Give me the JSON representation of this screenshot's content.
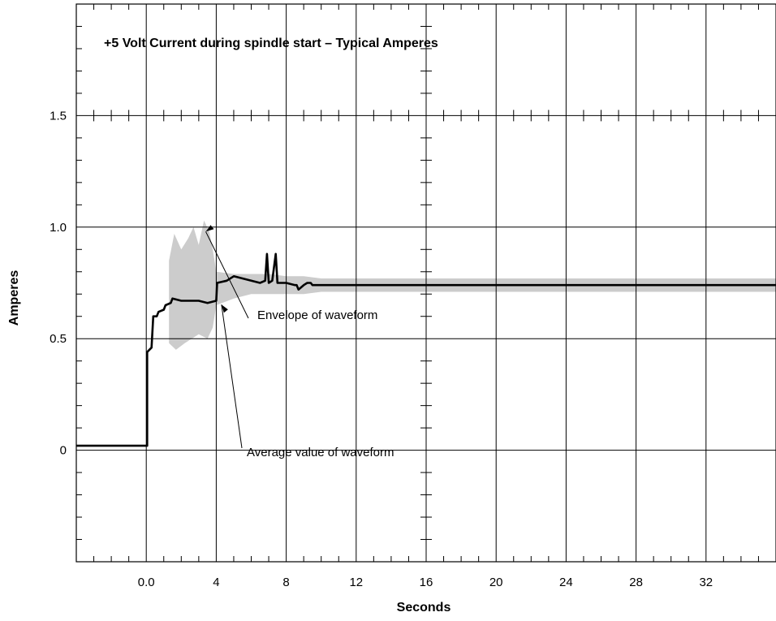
{
  "chart_data": {
    "type": "line",
    "title": "+5 Volt Current during spindle start – Typical Amperes",
    "xlabel": "Seconds",
    "ylabel": "Amperes",
    "xlim": [
      -4,
      36
    ],
    "ylim": [
      -0.5,
      2.0
    ],
    "xtick_labels": [
      {
        "x": 0,
        "label": "0.0"
      },
      {
        "x": 4,
        "label": "4"
      },
      {
        "x": 8,
        "label": "8"
      },
      {
        "x": 12,
        "label": "12"
      },
      {
        "x": 16,
        "label": "16"
      },
      {
        "x": 20,
        "label": "20"
      },
      {
        "x": 24,
        "label": "24"
      },
      {
        "x": 28,
        "label": "28"
      },
      {
        "x": 32,
        "label": "32"
      }
    ],
    "ytick_labels": [
      {
        "y": 0,
        "label": "0"
      },
      {
        "y": 0.5,
        "label": "0.5"
      },
      {
        "y": 1.0,
        "label": "1.0"
      },
      {
        "y": 1.5,
        "label": "1.5"
      }
    ],
    "grid": true,
    "series": [
      {
        "kind": "envelope",
        "upper": [
          [
            1.3,
            0.85
          ],
          [
            1.6,
            0.97
          ],
          [
            2.0,
            0.9
          ],
          [
            2.4,
            0.95
          ],
          [
            2.7,
            1.0
          ],
          [
            3.0,
            0.92
          ],
          [
            3.3,
            1.03
          ],
          [
            3.6,
            0.98
          ],
          [
            3.8,
            0.9
          ],
          [
            4.0,
            0.8
          ],
          [
            5,
            0.79
          ],
          [
            6,
            0.79
          ],
          [
            7,
            0.79
          ],
          [
            8,
            0.78
          ],
          [
            9,
            0.78
          ],
          [
            10,
            0.77
          ],
          [
            12,
            0.77
          ],
          [
            14,
            0.77
          ],
          [
            16,
            0.77
          ],
          [
            20,
            0.77
          ],
          [
            24,
            0.77
          ],
          [
            28,
            0.77
          ],
          [
            32,
            0.77
          ],
          [
            36,
            0.77
          ]
        ],
        "lower": [
          [
            1.3,
            0.48
          ],
          [
            1.7,
            0.45
          ],
          [
            2.2,
            0.48
          ],
          [
            2.6,
            0.5
          ],
          [
            3.0,
            0.52
          ],
          [
            3.5,
            0.5
          ],
          [
            3.8,
            0.55
          ],
          [
            4.0,
            0.65
          ],
          [
            5,
            0.68
          ],
          [
            6,
            0.7
          ],
          [
            7,
            0.7
          ],
          [
            8,
            0.7
          ],
          [
            9,
            0.7
          ],
          [
            10,
            0.71
          ],
          [
            12,
            0.71
          ],
          [
            14,
            0.71
          ],
          [
            16,
            0.71
          ],
          [
            20,
            0.71
          ],
          [
            24,
            0.71
          ],
          [
            28,
            0.71
          ],
          [
            32,
            0.71
          ],
          [
            36,
            0.71
          ]
        ]
      },
      {
        "kind": "line",
        "points": [
          [
            -4,
            0.02
          ],
          [
            0,
            0.02
          ],
          [
            0.05,
            0.02
          ],
          [
            0.05,
            0.44
          ],
          [
            0.3,
            0.46
          ],
          [
            0.4,
            0.6
          ],
          [
            0.6,
            0.6
          ],
          [
            0.7,
            0.62
          ],
          [
            1.0,
            0.63
          ],
          [
            1.1,
            0.65
          ],
          [
            1.4,
            0.66
          ],
          [
            1.5,
            0.68
          ],
          [
            2.0,
            0.67
          ],
          [
            3.0,
            0.67
          ],
          [
            3.5,
            0.66
          ],
          [
            4.0,
            0.67
          ],
          [
            4.05,
            0.75
          ],
          [
            4.6,
            0.76
          ],
          [
            5.0,
            0.78
          ],
          [
            5.5,
            0.77
          ],
          [
            6.0,
            0.76
          ],
          [
            6.5,
            0.75
          ],
          [
            6.8,
            0.76
          ],
          [
            6.9,
            0.88
          ],
          [
            7.0,
            0.75
          ],
          [
            7.2,
            0.76
          ],
          [
            7.4,
            0.88
          ],
          [
            7.5,
            0.75
          ],
          [
            8.0,
            0.75
          ],
          [
            8.5,
            0.74
          ],
          [
            8.6,
            0.74
          ],
          [
            8.7,
            0.72
          ],
          [
            9.0,
            0.74
          ],
          [
            9.2,
            0.75
          ],
          [
            9.4,
            0.75
          ],
          [
            9.5,
            0.74
          ],
          [
            10,
            0.74
          ],
          [
            12,
            0.74
          ],
          [
            16,
            0.74
          ],
          [
            20,
            0.74
          ],
          [
            24,
            0.74
          ],
          [
            28,
            0.74
          ],
          [
            32,
            0.74
          ],
          [
            36,
            0.74
          ]
        ]
      }
    ],
    "annotations": [
      {
        "text": "Envelope of waveform",
        "target": [
          3.4,
          0.98
        ]
      },
      {
        "text": "Average value of waveform",
        "target": [
          4.3,
          0.66
        ]
      }
    ]
  }
}
